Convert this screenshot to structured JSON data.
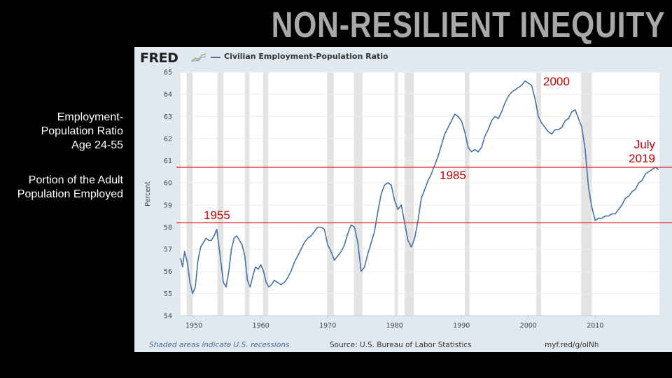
{
  "slide": {
    "title": "NON-RESILIENT INEQUITY",
    "side_text": {
      "line1": "Employment-",
      "line2": "Population Ratio",
      "line3": "Age 24-55",
      "line4": "Portion of the Adult",
      "line5": "Population Employed"
    }
  },
  "fred": {
    "logo": "FRED",
    "logo_icon": "sparkline-icon",
    "footer_note": "Shaded areas indicate U.S. recessions",
    "footer_source": "Source: U.S. Bureau of Labor Statistics",
    "footer_link": "myf.red/g/olNh"
  },
  "colors": {
    "series": "#4572a7",
    "annotation": "#c00000",
    "reference_line": "#e02020",
    "recession": "#e3e3e3",
    "panel": "#e1e9f0"
  },
  "chart_data": {
    "type": "line",
    "title": "",
    "xlabel": "",
    "ylabel": "Percent",
    "xlim": [
      1948,
      2019.6
    ],
    "ylim": [
      54,
      65
    ],
    "grid": true,
    "legend": [
      {
        "label": "Civilian Employment-Population Ratio",
        "placement": "top-left"
      }
    ],
    "x_ticks": [
      1950,
      1960,
      1970,
      1980,
      1990,
      2000,
      2010
    ],
    "y_ticks": [
      54,
      55,
      56,
      57,
      58,
      59,
      60,
      61,
      62,
      63,
      64,
      65
    ],
    "recessions": [
      [
        1948.9,
        1949.8
      ],
      [
        1953.5,
        1954.4
      ],
      [
        1957.6,
        1958.3
      ],
      [
        1960.3,
        1961.1
      ],
      [
        1969.9,
        1970.9
      ],
      [
        1973.9,
        1975.2
      ],
      [
        1980.0,
        1980.5
      ],
      [
        1981.5,
        1982.9
      ],
      [
        1990.5,
        1991.2
      ],
      [
        2001.2,
        2001.9
      ],
      [
        2007.9,
        2009.5
      ]
    ],
    "series": [
      {
        "name": "Civilian Employment-Population Ratio",
        "x": [
          1948.0,
          1948.3,
          1948.6,
          1949.0,
          1949.4,
          1949.8,
          1950.2,
          1950.6,
          1951.0,
          1951.4,
          1951.8,
          1952.2,
          1952.6,
          1953.0,
          1953.4,
          1953.7,
          1954.0,
          1954.4,
          1954.8,
          1955.2,
          1955.6,
          1956.0,
          1956.4,
          1956.8,
          1957.2,
          1957.6,
          1958.0,
          1958.4,
          1958.8,
          1959.2,
          1959.6,
          1960.0,
          1960.4,
          1960.8,
          1961.2,
          1961.6,
          1962.0,
          1962.5,
          1963.0,
          1963.5,
          1964.0,
          1964.5,
          1965.0,
          1965.5,
          1966.0,
          1966.5,
          1967.0,
          1967.5,
          1968.0,
          1968.5,
          1969.0,
          1969.5,
          1970.0,
          1970.5,
          1971.0,
          1971.5,
          1972.0,
          1972.5,
          1973.0,
          1973.5,
          1974.0,
          1974.5,
          1975.0,
          1975.5,
          1976.0,
          1976.5,
          1977.0,
          1977.5,
          1978.0,
          1978.5,
          1979.0,
          1979.5,
          1980.0,
          1980.5,
          1981.0,
          1981.5,
          1982.0,
          1982.5,
          1983.0,
          1983.5,
          1984.0,
          1984.5,
          1985.0,
          1985.5,
          1986.0,
          1986.5,
          1987.0,
          1987.5,
          1988.0,
          1988.5,
          1989.0,
          1989.5,
          1990.0,
          1990.5,
          1991.0,
          1991.5,
          1992.0,
          1992.5,
          1993.0,
          1993.5,
          1994.0,
          1994.5,
          1995.0,
          1995.5,
          1996.0,
          1996.5,
          1997.0,
          1997.5,
          1998.0,
          1998.5,
          1999.0,
          1999.5,
          2000.0,
          2000.5,
          2001.0,
          2001.5,
          2002.0,
          2002.5,
          2003.0,
          2003.5,
          2004.0,
          2004.5,
          2005.0,
          2005.5,
          2006.0,
          2006.5,
          2007.0,
          2007.5,
          2008.0,
          2008.5,
          2009.0,
          2009.5,
          2010.0,
          2010.5,
          2011.0,
          2011.5,
          2012.0,
          2012.5,
          2013.0,
          2013.5,
          2014.0,
          2014.5,
          2015.0,
          2015.5,
          2016.0,
          2016.5,
          2017.0,
          2017.5,
          2018.0,
          2018.5,
          2019.0,
          2019.5
        ],
        "values": [
          56.6,
          56.2,
          56.9,
          56.4,
          55.5,
          55.0,
          55.3,
          56.5,
          57.1,
          57.3,
          57.5,
          57.4,
          57.4,
          57.6,
          57.9,
          57.2,
          56.5,
          55.5,
          55.3,
          56.0,
          57.0,
          57.5,
          57.6,
          57.4,
          57.2,
          56.7,
          55.6,
          55.3,
          55.8,
          56.2,
          56.1,
          56.3,
          56.0,
          55.5,
          55.3,
          55.4,
          55.6,
          55.5,
          55.4,
          55.5,
          55.7,
          56.0,
          56.4,
          56.7,
          57.0,
          57.3,
          57.5,
          57.6,
          57.8,
          58.0,
          58.0,
          57.9,
          57.2,
          56.9,
          56.5,
          56.7,
          56.9,
          57.2,
          57.7,
          58.1,
          58.0,
          57.3,
          56.0,
          56.2,
          56.8,
          57.3,
          57.8,
          58.7,
          59.5,
          59.9,
          60.0,
          59.9,
          59.2,
          58.8,
          59.0,
          58.2,
          57.4,
          57.1,
          57.5,
          58.3,
          59.3,
          59.7,
          60.1,
          60.4,
          60.8,
          61.2,
          61.7,
          62.2,
          62.5,
          62.8,
          63.1,
          63.0,
          62.8,
          62.3,
          61.6,
          61.4,
          61.5,
          61.4,
          61.6,
          62.1,
          62.4,
          62.8,
          63.0,
          62.9,
          63.2,
          63.6,
          63.9,
          64.1,
          64.2,
          64.3,
          64.4,
          64.6,
          64.5,
          64.4,
          63.8,
          63.0,
          62.7,
          62.5,
          62.3,
          62.2,
          62.4,
          62.4,
          62.5,
          62.8,
          62.9,
          63.2,
          63.3,
          62.9,
          62.5,
          61.5,
          59.8,
          58.9,
          58.3,
          58.4,
          58.4,
          58.5,
          58.5,
          58.6,
          58.6,
          58.8,
          59.0,
          59.3,
          59.4,
          59.6,
          59.7,
          60.0,
          60.1,
          60.4,
          60.5,
          60.6,
          60.7,
          60.6
        ]
      }
    ],
    "reference_lines": [
      {
        "label": "upper",
        "y": 60.7
      },
      {
        "label": "lower",
        "y": 58.2
      }
    ],
    "annotations": [
      {
        "text": "1955",
        "x": 1955,
        "y": 58.2
      },
      {
        "text": "1985",
        "x": 1985,
        "y": 60.7
      },
      {
        "text": "2000",
        "x": 2000,
        "y": 64.7
      },
      {
        "text": "July",
        "x": 2019.5,
        "y": 61.4
      },
      {
        "text": "2019",
        "x": 2019.5,
        "y": 61.0
      }
    ]
  }
}
